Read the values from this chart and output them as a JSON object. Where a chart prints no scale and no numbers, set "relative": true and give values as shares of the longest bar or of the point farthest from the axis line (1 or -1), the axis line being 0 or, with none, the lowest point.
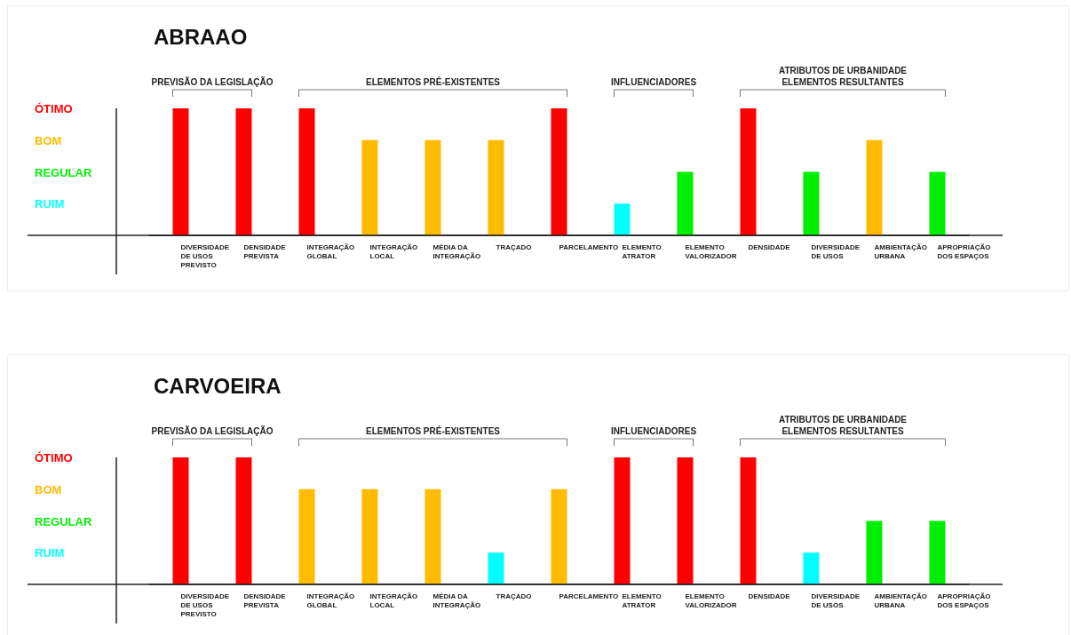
{
  "chart_data": [
    {
      "type": "bar",
      "title": "ABRAAO",
      "relative": true,
      "categories": [
        "DIVERSIDADE\nDE USOS\nPREVISTO",
        "DENSIDADE\nPREVISTA",
        "INTEGRAÇÃO\nGLOBAL",
        "INTEGRAÇÃO\nLOCAL",
        "MÉDIA DA\nINTEGRAÇÃO",
        "TRAÇADO",
        "PARCELAMENTO",
        "ELEMENTO\nATRATOR",
        "ELEMENTO\nVALORIZADOR",
        "DENSIDADE",
        "DIVERSIDADE\nDE USOS",
        "AMBIENTAÇÃO\nURBANA",
        "APROPRIAÇÃO\nDOS ESPAÇOS"
      ],
      "values": [
        1,
        1,
        1,
        0.75,
        0.75,
        0.75,
        1,
        0.25,
        0.5,
        1,
        0.5,
        0.75,
        0.5
      ],
      "colors": [
        "#ff0000",
        "#ff0000",
        "#ff0000",
        "#ffbb00",
        "#ffbb00",
        "#ffbb00",
        "#ff0000",
        "#00ffff",
        "#00ee00",
        "#ff0000",
        "#00ee00",
        "#ffbb00",
        "#00ee00"
      ],
      "grid": false,
      "annotations": [
        "PREVISÃO DA LEGISLAÇÃO",
        "ELEMENTOS PRÉ-EXISTENTES",
        "INFLUENCIADORES",
        "ATRIBUTOS DE URBANIDADE\nELEMENTOS RESULTANTES",
        "ÓTIMO",
        "BOM",
        "REGULAR",
        "RUIM"
      ]
    },
    {
      "type": "bar",
      "title": "CARVOEIRA",
      "relative": true,
      "categories": [
        "DIVERSIDADE\nDE USOS\nPREVISTO",
        "DENSIDADE\nPREVISTA",
        "INTEGRAÇÃO\nGLOBAL",
        "INTEGRAÇÃO\nLOCAL",
        "MÉDIA DA\nINTEGRAÇÃO",
        "TRAÇADO",
        "PARCELAMENTO",
        "ELEMENTO\nATRATOR",
        "ELEMENTO\nVALORIZADOR",
        "DENSIDADE",
        "DIVERSIDADE\nDE USOS",
        "AMBIENTAÇÃO\nURBANA",
        "APROPRIAÇÃO\nDOS ESPAÇOS"
      ],
      "values": [
        1,
        1,
        0.75,
        0.75,
        0.75,
        0.25,
        0.75,
        1,
        1,
        1,
        0.25,
        0.5,
        0.5
      ],
      "colors": [
        "#ff0000",
        "#ff0000",
        "#ffbb00",
        "#ffbb00",
        "#ffbb00",
        "#00ffff",
        "#ffbb00",
        "#ff0000",
        "#ff0000",
        "#ff0000",
        "#00ffff",
        "#00ee00",
        "#00ee00"
      ],
      "grid": false,
      "annotations": [
        "PREVISÃO DA LEGISLAÇÃO",
        "ELEMENTOS PRÉ-EXISTENTES",
        "INFLUENCIADORES",
        "ATRIBUTOS DE URBANIDADE\nELEMENTOS RESULTANTES",
        "ÓTIMO",
        "BOM",
        "REGULAR",
        "RUIM"
      ]
    }
  ]
}
